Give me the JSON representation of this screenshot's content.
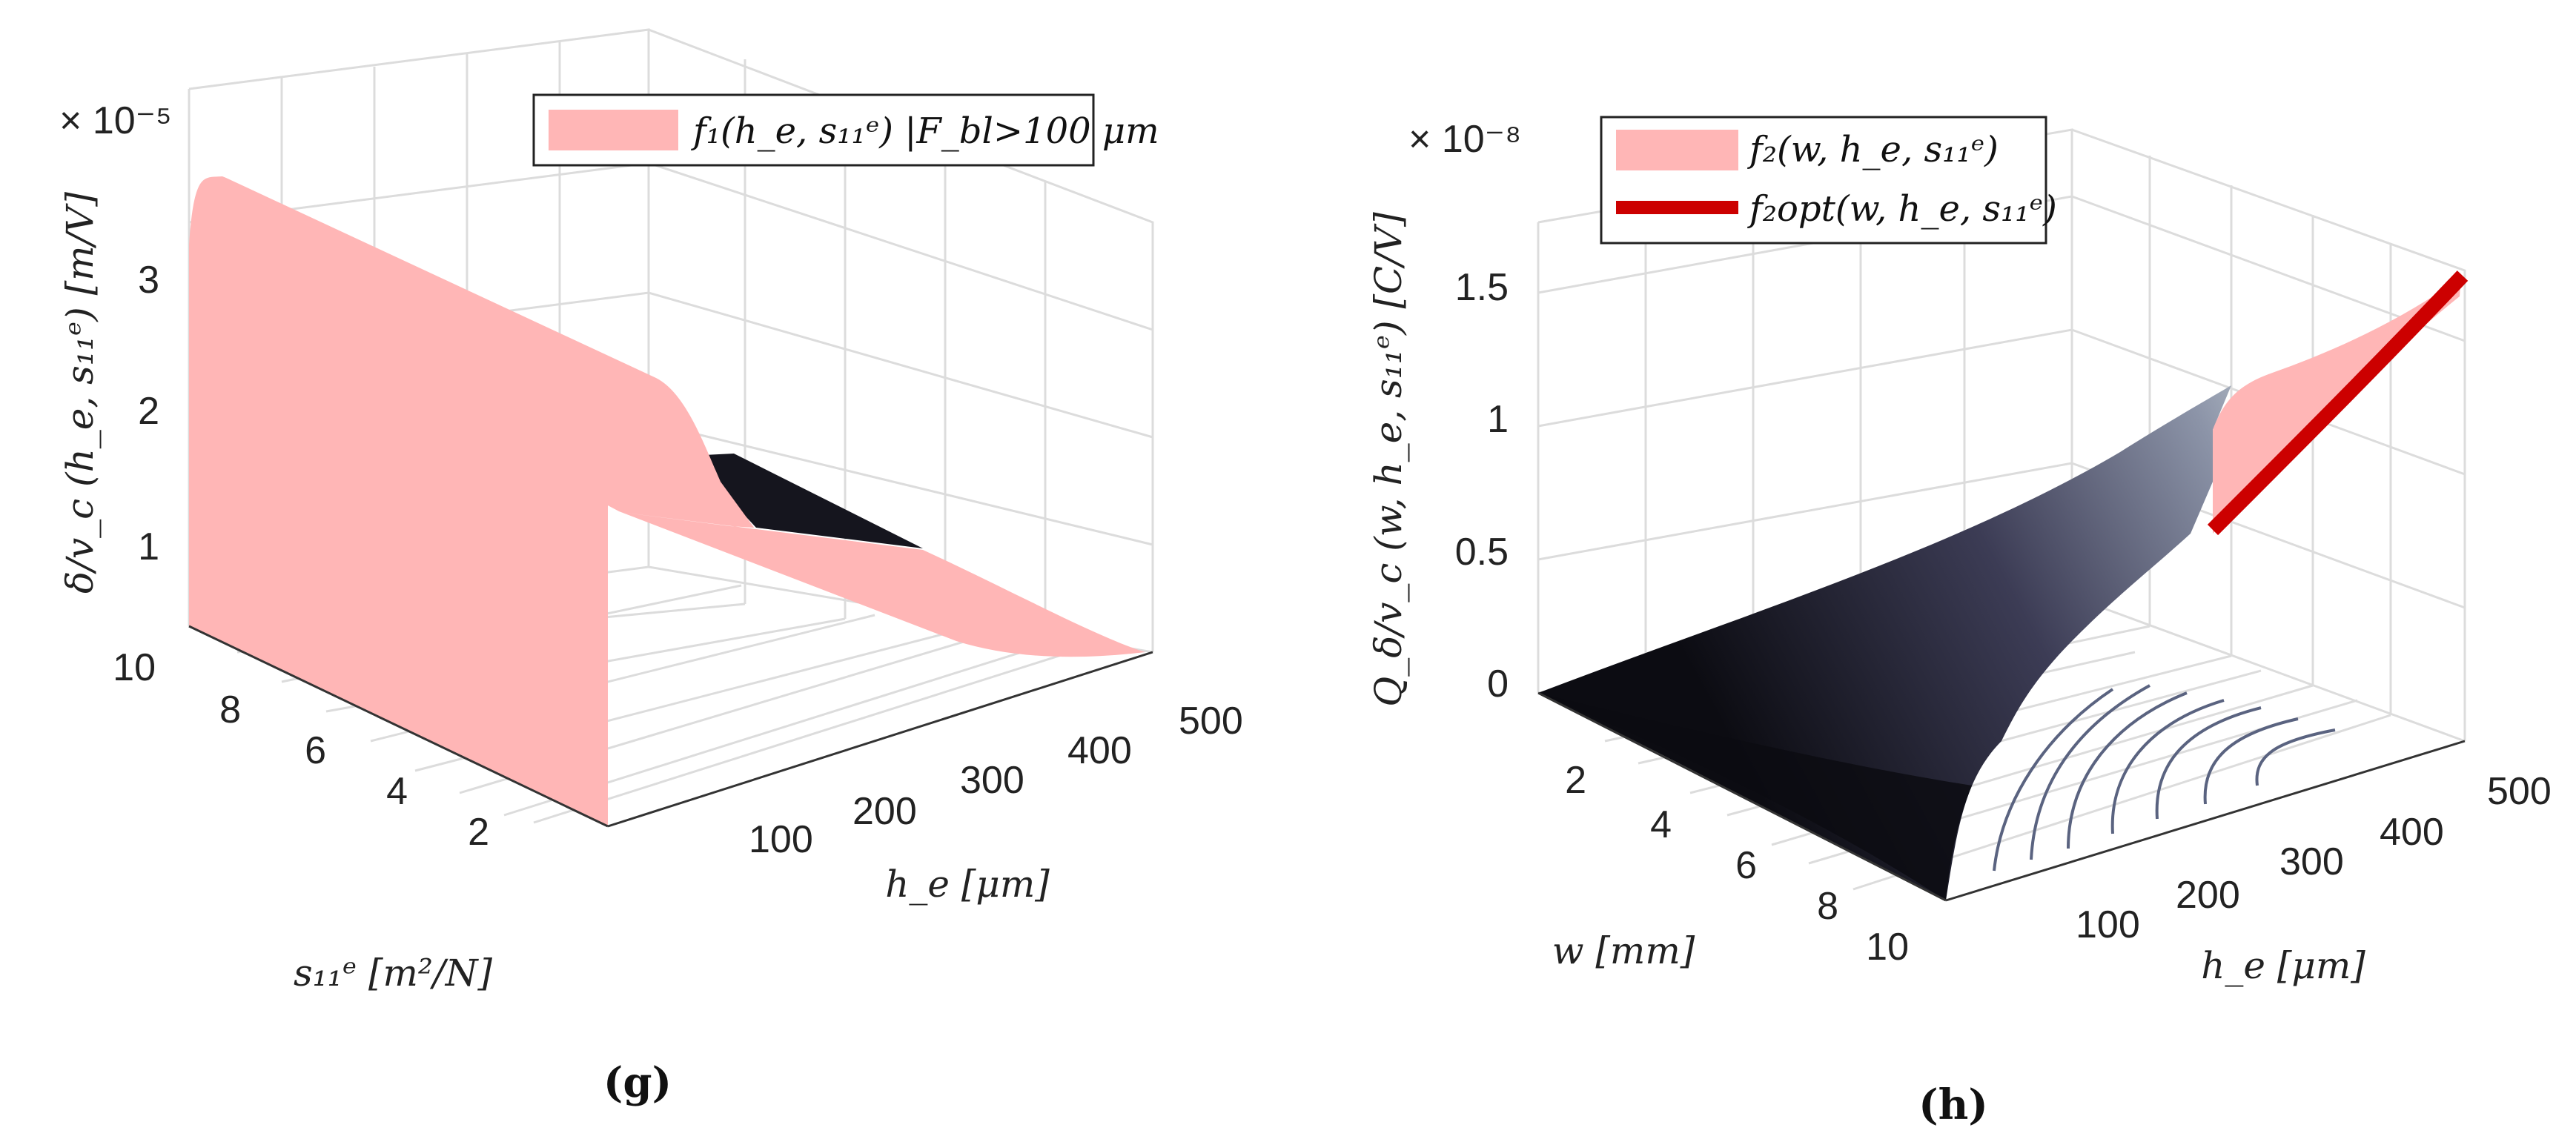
{
  "chart_data": [
    {
      "type": "surface3d",
      "panel_label": "(g)",
      "exponent_label": "× 10⁻⁵",
      "zlabel": "δ/v_c (h_e, s₁₁ᵉ)  [m/V]",
      "xlabel": "h_e  [μm]",
      "ylabel": "s₁₁ᵉ  [m²/N]",
      "x_ticks": [
        "100",
        "200",
        "300",
        "400",
        "500"
      ],
      "y_ticks": [
        "10",
        "8",
        "6",
        "4",
        "2"
      ],
      "z_ticks": [
        "1",
        "2",
        "3"
      ],
      "zlim": [
        0,
        3.7
      ],
      "legend": [
        {
          "label": "f₁(h_e, s₁₁ᵉ) |F_bl>100 μm",
          "color": "#ffb6b6",
          "style": "patch"
        }
      ],
      "surface_peak": {
        "h_e": 100,
        "s11": 9,
        "value": 3.7
      },
      "colors": {
        "surface": "#ffb6b6",
        "shadow": "#15151e"
      }
    },
    {
      "type": "surface3d",
      "panel_label": "(h)",
      "exponent_label": "× 10⁻⁸",
      "zlabel": "Q_δ/v_c (w, h_e, s₁₁ᵉ)  [C/V]",
      "xlabel": "h_e  [μm]",
      "ylabel": "w  [mm]",
      "x_ticks": [
        "100",
        "200",
        "300",
        "400",
        "500"
      ],
      "y_ticks": [
        "2",
        "4",
        "6",
        "8",
        "10"
      ],
      "z_ticks": [
        "0",
        "0.5",
        "1",
        "1.5"
      ],
      "zlim": [
        0,
        1.7
      ],
      "legend": [
        {
          "label": "f₂(w, h_e, s₁₁ᵉ)",
          "color": "#ffb6b6",
          "style": "patch"
        },
        {
          "label": "f₂opt(w, h_e, s₁₁ᵉ)",
          "color": "#cc0000",
          "style": "line"
        }
      ],
      "optimum_line": {
        "h_e": [
          300,
          500
        ],
        "value": [
          0.6,
          1.6
        ]
      },
      "colors": {
        "surface_dark": "#0c0c12",
        "surface_light": "#c9d2d8",
        "optimum": "#cc0000",
        "contour": "#5a6380"
      }
    }
  ]
}
